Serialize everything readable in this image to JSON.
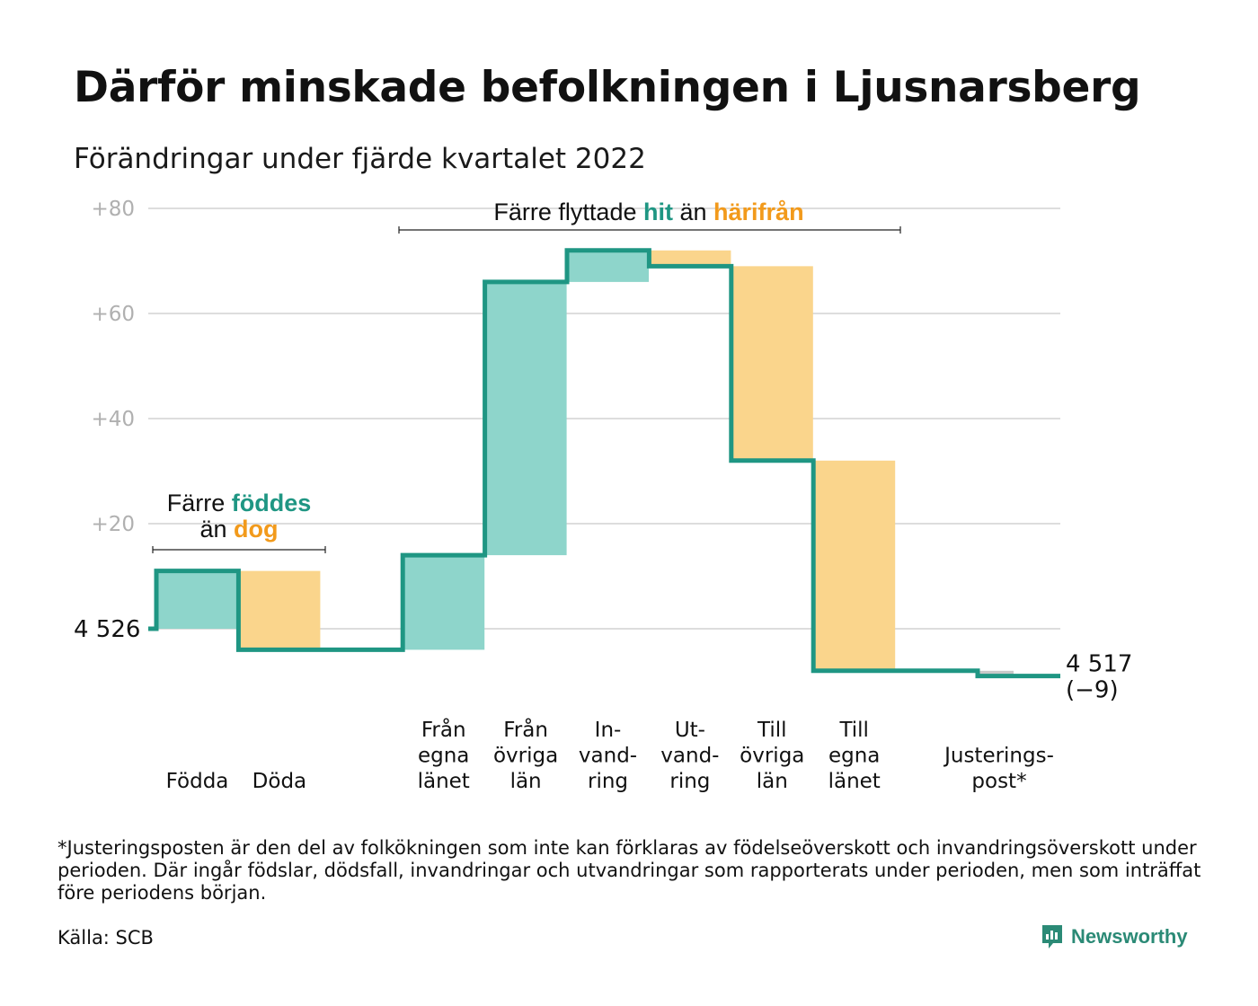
{
  "title": "Därför minskade befolkningen i Ljusnarsberg",
  "subtitle": "Förändringar under fjärde kvartalet 2022",
  "colors": {
    "teal_line": "#1f9683",
    "teal_fill": "#8ed5cb",
    "orange_fill": "#fad58c",
    "orange_text": "#f29a1b",
    "teal_text": "#1f9683",
    "gray_fill": "#c8c8c8",
    "grid": "#dddddd",
    "tick_text": "#b0b0b0"
  },
  "annotations": {
    "births": {
      "line1": "Färre",
      "highlight1": "föddes",
      "line2_pre": "än",
      "highlight2": "dog"
    },
    "moves": {
      "pre": "Färre flyttade",
      "highlight1": "hit",
      "mid": "än",
      "highlight2": "härifrån"
    }
  },
  "chart_data": {
    "type": "waterfall",
    "y_ticks": [
      "+20",
      "+40",
      "+60",
      "+80"
    ],
    "y_tick_values": [
      20,
      40,
      60,
      80
    ],
    "ylim": [
      -15,
      83
    ],
    "start_value": 0,
    "start_label": "4 526",
    "end_label_line1": "4 517",
    "end_label_line2": "(−9)",
    "end_value": -9,
    "steps": [
      {
        "label_lines": [
          "Födda"
        ],
        "delta": 11,
        "kind": "in"
      },
      {
        "label_lines": [
          "Döda"
        ],
        "delta": -15,
        "kind": "out"
      },
      {
        "label_lines": [],
        "delta": 0,
        "kind": "gap"
      },
      {
        "label_lines": [
          "Från",
          "egna",
          "länet"
        ],
        "delta": 18,
        "kind": "in"
      },
      {
        "label_lines": [
          "Från",
          "övriga",
          "län"
        ],
        "delta": 52,
        "kind": "in"
      },
      {
        "label_lines": [
          "In-",
          "vand-",
          "ring"
        ],
        "delta": 6,
        "kind": "in"
      },
      {
        "label_lines": [
          "Ut-",
          "vand-",
          "ring"
        ],
        "delta": -3,
        "kind": "out"
      },
      {
        "label_lines": [
          "Till",
          "övriga",
          "län"
        ],
        "delta": -37,
        "kind": "out"
      },
      {
        "label_lines": [
          "Till",
          "egna",
          "länet"
        ],
        "delta": -40,
        "kind": "out"
      },
      {
        "label_lines": [],
        "delta": 0,
        "kind": "gap"
      },
      {
        "label_lines": [
          "Justerings-",
          "post*"
        ],
        "delta": -1,
        "kind": "adj"
      }
    ]
  },
  "footnote": "*Justeringsposten är den del av folkökningen som inte kan förklaras av födelseöverskott och invandringsöverskott under perioden. Där ingår födslar, dödsfall, invandringar och utvandringar som rapporterats under perioden, men som inträffat före periodens början.",
  "source": "Källa: SCB",
  "brand": {
    "name": "Newsworthy",
    "icon": "newsworthy-logo-icon"
  }
}
